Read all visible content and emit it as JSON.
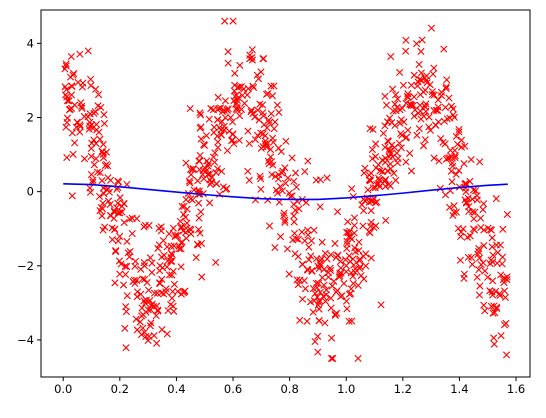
{
  "chart_data": {
    "type": "scatter",
    "xlim": [
      -0.0785,
      1.6493
    ],
    "ylim": [
      -5.0,
      4.9
    ],
    "x_ticks": [
      "0.0",
      "0.2",
      "0.4",
      "0.6",
      "0.8",
      "1.0",
      "1.2",
      "1.4",
      "1.6"
    ],
    "y_ticks": [
      "−4",
      "−2",
      "0",
      "2",
      "4"
    ],
    "x_tick_values": [
      0.0,
      0.2,
      0.4,
      0.6,
      0.8,
      1.0,
      1.2,
      1.4,
      1.6
    ],
    "y_tick_values": [
      -4,
      -2,
      0,
      2,
      4
    ],
    "grid": false,
    "series": [
      {
        "marker": "x",
        "color": "#ff0000",
        "x_range": [
          0.0,
          1.5708
        ],
        "n_points": 1000,
        "model": "y ≈ 2.5·sin(10x + π/2) + noise(σ≈0.9)"
      },
      {
        "marker": "line",
        "color": "#0000ff",
        "x": [
          0.0,
          0.1,
          0.2,
          0.3,
          0.4,
          0.5,
          0.6,
          0.7,
          0.8,
          0.9,
          1.0,
          1.1,
          1.2,
          1.3,
          1.4,
          1.5,
          1.571
        ],
        "y": [
          0.21,
          0.19,
          0.13,
          0.06,
          -0.01,
          -0.08,
          -0.14,
          -0.19,
          -0.21,
          -0.21,
          -0.17,
          -0.11,
          -0.04,
          0.04,
          0.11,
          0.17,
          0.2
        ]
      }
    ]
  }
}
